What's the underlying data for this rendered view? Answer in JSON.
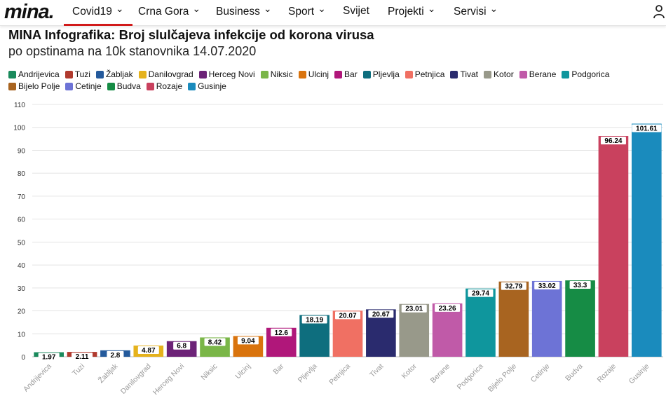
{
  "nav": {
    "logo": "mina.",
    "items": [
      {
        "label": "Covid19",
        "chevron": true,
        "active": true
      },
      {
        "label": "Crna Gora",
        "chevron": true
      },
      {
        "label": "Business",
        "chevron": true
      },
      {
        "label": "Sport",
        "chevron": true
      },
      {
        "label": "Svijet",
        "chevron": false
      },
      {
        "label": "Projekti",
        "chevron": true
      },
      {
        "label": "Servisi",
        "chevron": true
      }
    ],
    "user_icon": "user-icon"
  },
  "chart_data": {
    "type": "bar",
    "title": "MINA Infografika: Broj slulčajeva infekcije od korona virusa",
    "subtitle": "po opstinama na 10k stanovnika 14.07.2020",
    "categories": [
      "Andrijevica",
      "Tuzi",
      "Žabljak",
      "Danilovgrad",
      "Herceg Novi",
      "Niksic",
      "Ulcinj",
      "Bar",
      "Pljevlja",
      "Petnjica",
      "Tivat",
      "Kotor",
      "Berane",
      "Podgorica",
      "Bijelo Polje",
      "Cetinje",
      "Budva",
      "Rozaje",
      "Gusinje"
    ],
    "values": [
      1.97,
      2.11,
      2.8,
      4.87,
      6.8,
      8.42,
      9.04,
      12.6,
      18.19,
      20.07,
      20.67,
      23.01,
      23.26,
      29.74,
      32.79,
      33.02,
      33.3,
      96.24,
      101.61
    ],
    "value_labels": [
      "1.97",
      "2.11",
      "2.8",
      "4.87",
      "6.8",
      "8.42",
      "9.04",
      "12.6",
      "18.19",
      "20.07",
      "20.67",
      "23.01",
      "23.26",
      "29.74",
      "32.79",
      "33.02",
      "33.3",
      "96.24",
      "101.61"
    ],
    "colors": [
      "#1a8a5c",
      "#b03a2e",
      "#245a9c",
      "#e5b21c",
      "#6c2377",
      "#7ab648",
      "#d9730d",
      "#b0177a",
      "#0e6e7e",
      "#f07063",
      "#2a2b6e",
      "#98998a",
      "#c05aa8",
      "#0f969d",
      "#a86420",
      "#6d73d6",
      "#168c45",
      "#c9415e",
      "#1a8bbd"
    ],
    "ylim": [
      0,
      110
    ],
    "yticks": [
      0,
      10,
      20,
      30,
      40,
      50,
      60,
      70,
      80,
      90,
      100,
      110
    ],
    "xlabel": "",
    "ylabel": "",
    "grid": true,
    "legend_position": "top-left"
  }
}
